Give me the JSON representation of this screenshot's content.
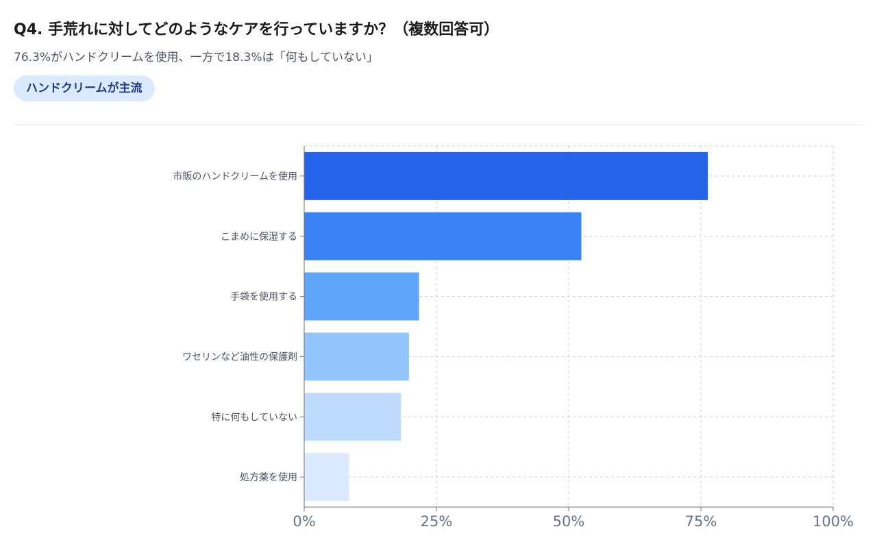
{
  "header": {
    "title": "Q4. 手荒れに対してどのようなケアを行っていますか？（複数回答可）",
    "subtitle": "76.3%がハンドクリームを使用、一方で18.3%は「何もしていない」",
    "badge": "ハンドクリームが主流"
  },
  "chart_data": {
    "type": "bar",
    "orientation": "horizontal",
    "categories": [
      "市販のハンドクリームを使用",
      "こまめに保湿する",
      "手袋を使用する",
      "ワセリンなど油性の保護剤",
      "特に何もしていない",
      "処方薬を使用"
    ],
    "values": [
      76.3,
      52.4,
      21.7,
      19.8,
      18.3,
      8.5
    ],
    "bar_colors": [
      "#2563eb",
      "#3b82f6",
      "#60a5fa",
      "#93c5fd",
      "#bfdbfe",
      "#dbeafe"
    ],
    "xlim": [
      0,
      100
    ],
    "x_ticks": [
      0,
      25,
      50,
      75,
      100
    ],
    "x_tick_labels": [
      "0%",
      "25%",
      "50%",
      "75%",
      "100%"
    ],
    "grid": true,
    "title": "",
    "xlabel": "",
    "ylabel": ""
  }
}
